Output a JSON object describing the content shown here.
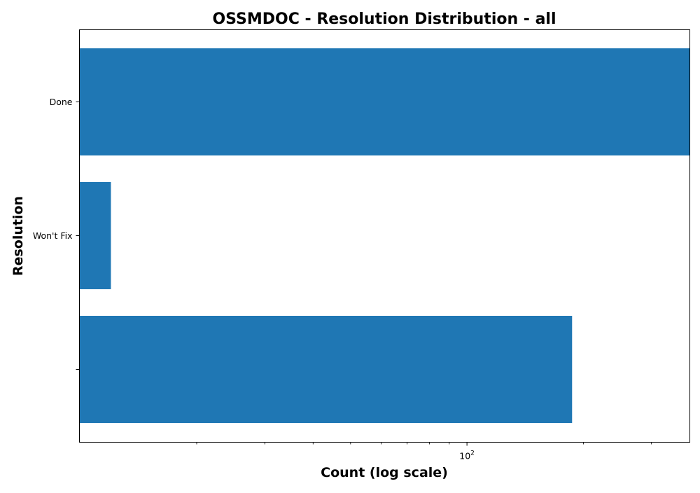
{
  "chart_data": {
    "type": "bar",
    "orientation": "horizontal",
    "title": "OSSMDOC - Resolution Distribution - all",
    "xlabel": "Count (log scale)",
    "ylabel": "Resolution",
    "x_scale": "log",
    "xlim": [
      9.95,
      1000
    ],
    "x_tick_label": {
      "base": "10",
      "exponent": "2",
      "value": 100
    },
    "categories": [
      "Done",
      "Won't Fix",
      ""
    ],
    "values": [
      445,
      12,
      187
    ],
    "bar_color": "#1f77b4",
    "grid": false,
    "legend": "none"
  }
}
